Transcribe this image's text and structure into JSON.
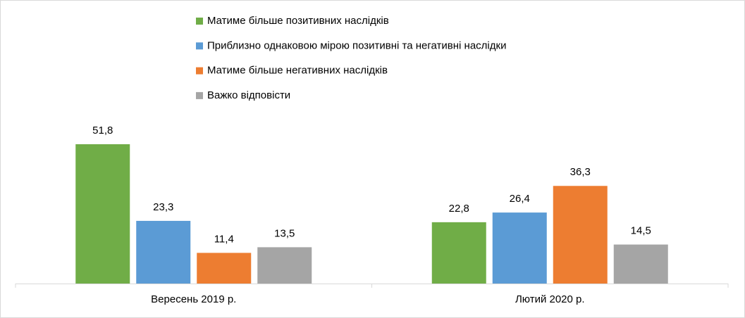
{
  "chart_data": {
    "type": "bar",
    "categories": [
      "Вересень 2019 р.",
      "Лютий 2020 р."
    ],
    "series": [
      {
        "name": "Матиме більше позитивних наслідків",
        "color": "#70ad47",
        "values": [
          51.8,
          22.8
        ],
        "value_labels": [
          "51,8",
          "22,8"
        ]
      },
      {
        "name": "Приблизно однаковою мірою позитивні та негативні наслідки",
        "color": "#5b9bd5",
        "values": [
          23.3,
          26.4
        ],
        "value_labels": [
          "23,3",
          "26,4"
        ]
      },
      {
        "name": "Матиме більше негативних наслідків",
        "color": "#ed7d31",
        "values": [
          11.4,
          36.3
        ],
        "value_labels": [
          "11,4",
          "36,3"
        ]
      },
      {
        "name": "Важко відповісти",
        "color": "#a5a5a5",
        "values": [
          13.5,
          14.5
        ],
        "value_labels": [
          "13,5",
          "14,5"
        ]
      }
    ],
    "legend": "top"
  }
}
